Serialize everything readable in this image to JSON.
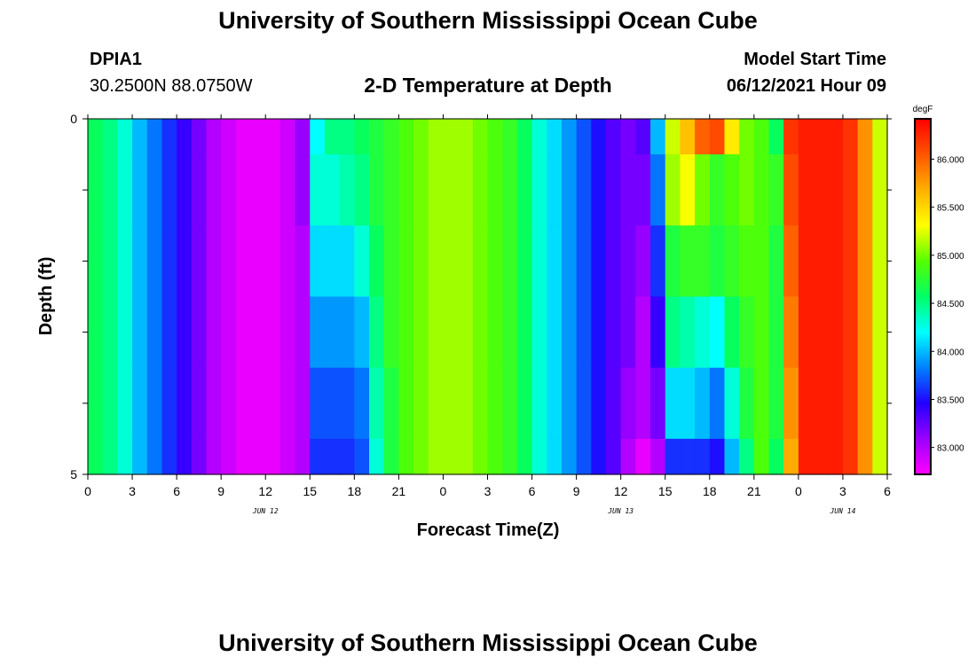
{
  "header": {
    "title": "University of Southern Mississippi Ocean Cube",
    "station_id": "DPIA1",
    "station_coords": "30.2500N  88.0750W",
    "subtitle": "2-D Temperature at Depth",
    "model_label": "Model Start Time",
    "model_time": "06/12/2021 Hour 09"
  },
  "footer": {
    "title": "University of Southern Mississippi Ocean Cube"
  },
  "chart_data": {
    "type": "heatmap",
    "title": "2-D Temperature at Depth",
    "xlabel": "Forecast Time(Z)",
    "ylabel": "Depth (ft)",
    "y_ticks": [
      "0",
      "5"
    ],
    "y_range": [
      0,
      5
    ],
    "x_ticks": [
      "0",
      "3",
      "6",
      "9",
      "12",
      "15",
      "18",
      "21",
      "0",
      "3",
      "6",
      "9",
      "12",
      "15",
      "18",
      "21",
      "0",
      "3",
      "6"
    ],
    "x_range_hours": [
      0,
      54
    ],
    "date_labels": [
      {
        "label": "JUN 12",
        "hour": 12
      },
      {
        "label": "JUN 13",
        "hour": 36
      },
      {
        "label": "JUN 14",
        "hour": 51
      }
    ],
    "colorbar": {
      "unit": "degF",
      "min": 82.72,
      "max": 86.42,
      "ticks": [
        "83.000",
        "83.500",
        "84.000",
        "84.500",
        "85.000",
        "85.500",
        "86.000"
      ],
      "tick_values": [
        83.0,
        83.5,
        84.0,
        84.5,
        85.0,
        85.5,
        86.0
      ],
      "stops": [
        "#ff00ff",
        "#9a00ff",
        "#2200ff",
        "#0080ff",
        "#00ffff",
        "#00ff66",
        "#55ff00",
        "#ffff00",
        "#ffb000",
        "#ff5500",
        "#ff0000"
      ]
    },
    "depth_layers": [
      0,
      0.5,
      1.5,
      2.5,
      3.5,
      4.5
    ],
    "hours": [
      0,
      1,
      2,
      3,
      4,
      5,
      6,
      7,
      8,
      9,
      10,
      11,
      12,
      13,
      14,
      15,
      16,
      17,
      18,
      19,
      20,
      21,
      22,
      23,
      24,
      25,
      26,
      27,
      28,
      29,
      30,
      31,
      32,
      33,
      34,
      35,
      36,
      37,
      38,
      39,
      40,
      41,
      42,
      43,
      44,
      45,
      46,
      47,
      48,
      49,
      50,
      51,
      52,
      53
    ],
    "values": [
      [
        84.6,
        84.5,
        84.3,
        84.0,
        83.8,
        83.6,
        83.4,
        83.2,
        83.0,
        82.9,
        82.8,
        82.8,
        82.8,
        82.9,
        83.1,
        84.2,
        84.5,
        84.5,
        84.6,
        84.7,
        84.8,
        84.9,
        85.0,
        85.1,
        85.1,
        85.1,
        85.0,
        84.9,
        84.8,
        84.6,
        84.3,
        84.1,
        83.9,
        83.7,
        83.5,
        83.3,
        83.2,
        83.3,
        84.0,
        85.2,
        85.6,
        86.0,
        86.1,
        85.4,
        85.0,
        84.9,
        84.6,
        86.2,
        86.3,
        86.3,
        86.3,
        86.2,
        85.8,
        85.2
      ],
      [
        84.6,
        84.5,
        84.3,
        84.0,
        83.8,
        83.6,
        83.4,
        83.2,
        83.0,
        82.9,
        82.8,
        82.8,
        82.8,
        82.9,
        83.1,
        84.3,
        84.3,
        84.4,
        84.5,
        84.7,
        84.8,
        84.9,
        85.0,
        85.1,
        85.1,
        85.1,
        85.0,
        84.9,
        84.8,
        84.6,
        84.3,
        84.1,
        83.9,
        83.7,
        83.5,
        83.3,
        83.2,
        83.2,
        83.8,
        85.1,
        85.3,
        85.0,
        84.8,
        84.9,
        85.0,
        84.9,
        84.8,
        86.1,
        86.3,
        86.3,
        86.3,
        86.2,
        85.8,
        85.2
      ],
      [
        84.6,
        84.5,
        84.3,
        84.0,
        83.8,
        83.6,
        83.4,
        83.2,
        83.0,
        82.9,
        82.8,
        82.8,
        82.8,
        82.9,
        83.0,
        84.1,
        84.1,
        84.1,
        84.3,
        84.6,
        84.8,
        84.9,
        85.0,
        85.1,
        85.1,
        85.1,
        85.0,
        84.9,
        84.8,
        84.6,
        84.3,
        84.1,
        83.9,
        83.7,
        83.5,
        83.3,
        83.2,
        83.1,
        83.6,
        84.7,
        84.8,
        84.8,
        84.7,
        84.8,
        84.9,
        84.9,
        84.7,
        86.0,
        86.3,
        86.3,
        86.3,
        86.2,
        85.8,
        85.2
      ],
      [
        84.6,
        84.5,
        84.3,
        84.0,
        83.8,
        83.6,
        83.4,
        83.2,
        83.0,
        82.9,
        82.8,
        82.8,
        82.8,
        82.9,
        83.0,
        83.9,
        83.9,
        83.9,
        84.0,
        84.5,
        84.8,
        84.9,
        85.0,
        85.1,
        85.1,
        85.1,
        85.0,
        84.9,
        84.8,
        84.6,
        84.3,
        84.1,
        83.9,
        83.7,
        83.5,
        83.3,
        83.2,
        83.0,
        83.4,
        84.5,
        84.4,
        84.3,
        84.2,
        84.6,
        84.8,
        84.9,
        84.7,
        85.9,
        86.3,
        86.3,
        86.3,
        86.2,
        85.8,
        85.2
      ],
      [
        84.6,
        84.5,
        84.3,
        84.0,
        83.8,
        83.6,
        83.4,
        83.2,
        83.0,
        82.9,
        82.8,
        82.8,
        82.8,
        82.9,
        83.0,
        83.7,
        83.7,
        83.7,
        83.8,
        84.4,
        84.7,
        84.9,
        85.0,
        85.1,
        85.1,
        85.1,
        85.0,
        84.9,
        84.8,
        84.6,
        84.3,
        84.1,
        83.9,
        83.7,
        83.5,
        83.3,
        83.1,
        83.0,
        83.2,
        84.1,
        84.1,
        84.0,
        83.8,
        84.3,
        84.7,
        84.9,
        84.7,
        85.8,
        86.3,
        86.3,
        86.3,
        86.2,
        85.8,
        85.2
      ],
      [
        84.6,
        84.5,
        84.3,
        84.0,
        83.8,
        83.6,
        83.4,
        83.2,
        83.0,
        82.9,
        82.8,
        82.8,
        82.8,
        82.9,
        83.0,
        83.6,
        83.6,
        83.6,
        83.7,
        84.3,
        84.7,
        84.9,
        85.0,
        85.1,
        85.1,
        85.1,
        85.0,
        84.9,
        84.8,
        84.6,
        84.3,
        84.1,
        83.9,
        83.7,
        83.5,
        83.3,
        83.0,
        82.8,
        83.0,
        83.6,
        83.6,
        83.6,
        83.5,
        84.0,
        84.5,
        84.9,
        84.6,
        85.7,
        86.3,
        86.3,
        86.3,
        86.2,
        85.8,
        85.2
      ]
    ]
  }
}
